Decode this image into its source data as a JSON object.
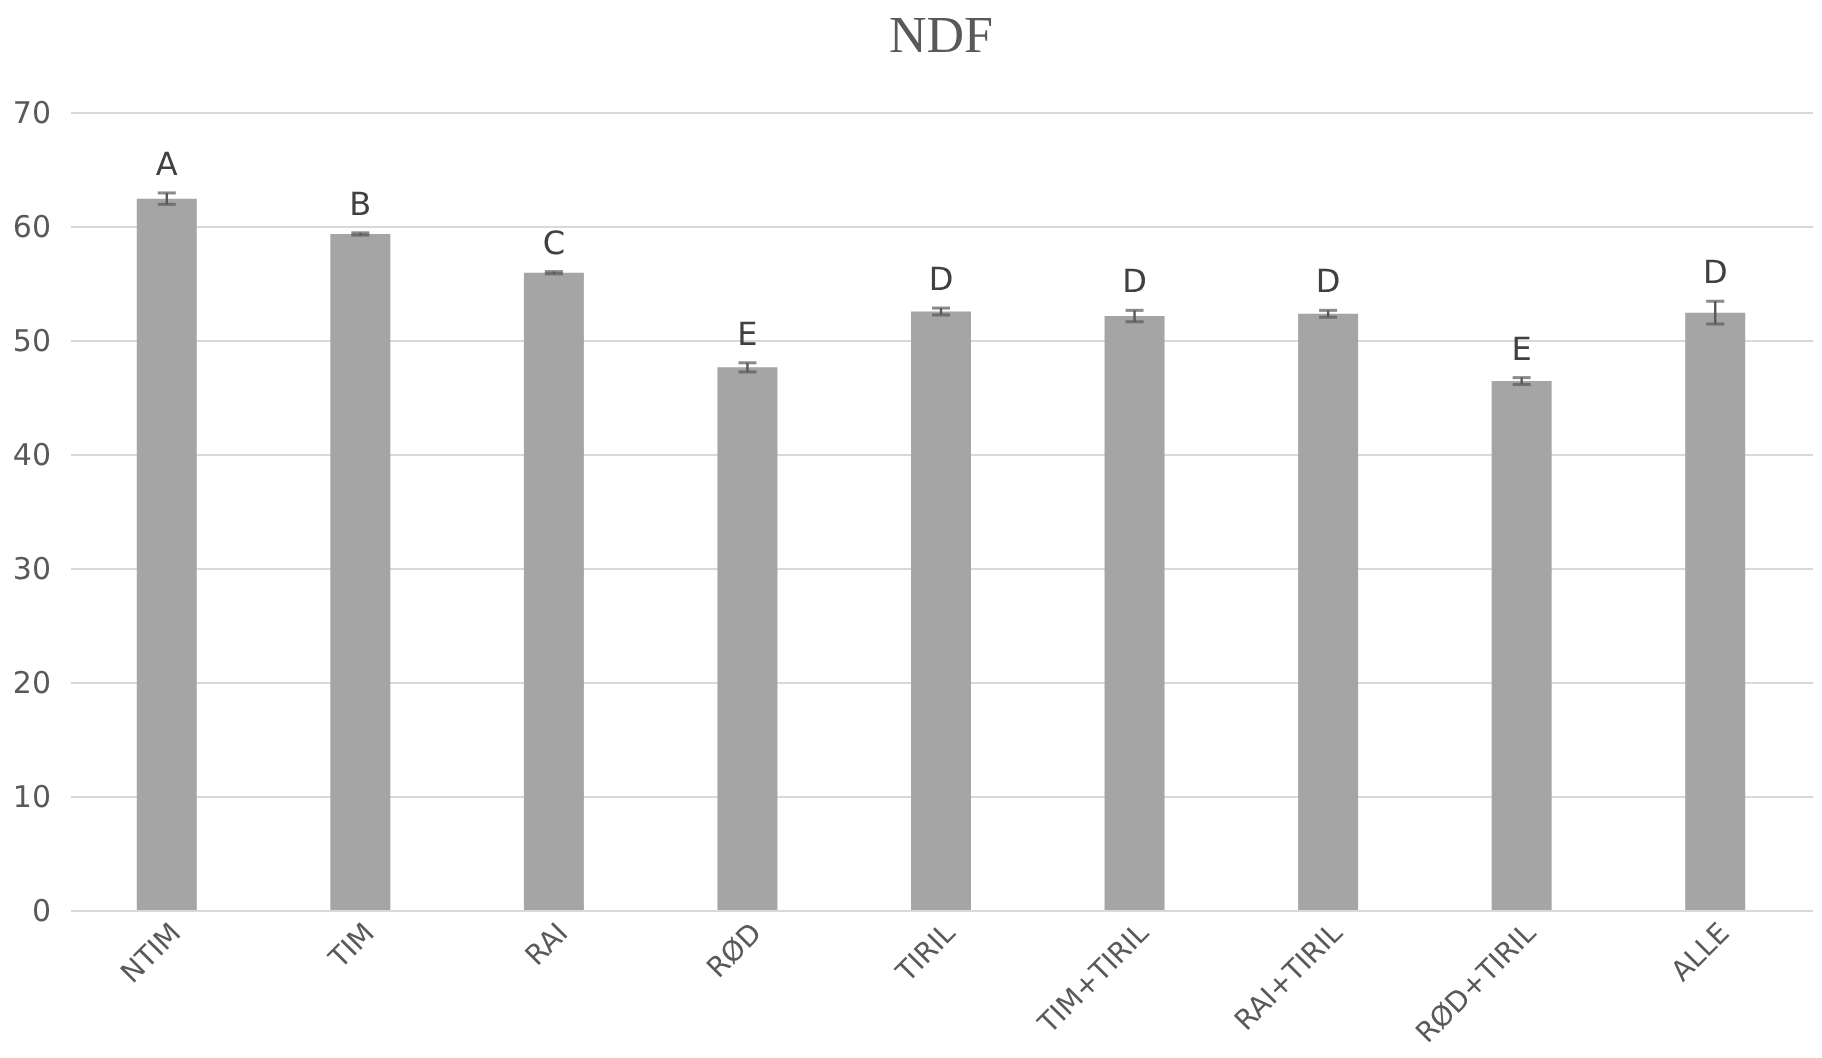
{
  "chart_data": {
    "type": "bar",
    "title": "NDF",
    "categories": [
      "NTIM",
      "TIM",
      "RAI",
      "RØD",
      "TIRIL",
      "TIM+TIRIL",
      "RAI+TIRIL",
      "RØD+TIRIL",
      "ALLE"
    ],
    "values": [
      62.4,
      59.3,
      55.9,
      47.6,
      52.5,
      52.1,
      52.3,
      46.4,
      52.4
    ],
    "errors": [
      0.5,
      0.1,
      0.1,
      0.4,
      0.3,
      0.5,
      0.3,
      0.3,
      1.0
    ],
    "value_labels": [
      "A",
      "B",
      "C",
      "E",
      "D",
      "D",
      "D",
      "E",
      "D"
    ],
    "color": "#a5a5a5",
    "ylim": [
      0,
      70
    ],
    "yticks": [
      0,
      10,
      20,
      30,
      40,
      50,
      60,
      70
    ],
    "grid": "y"
  }
}
